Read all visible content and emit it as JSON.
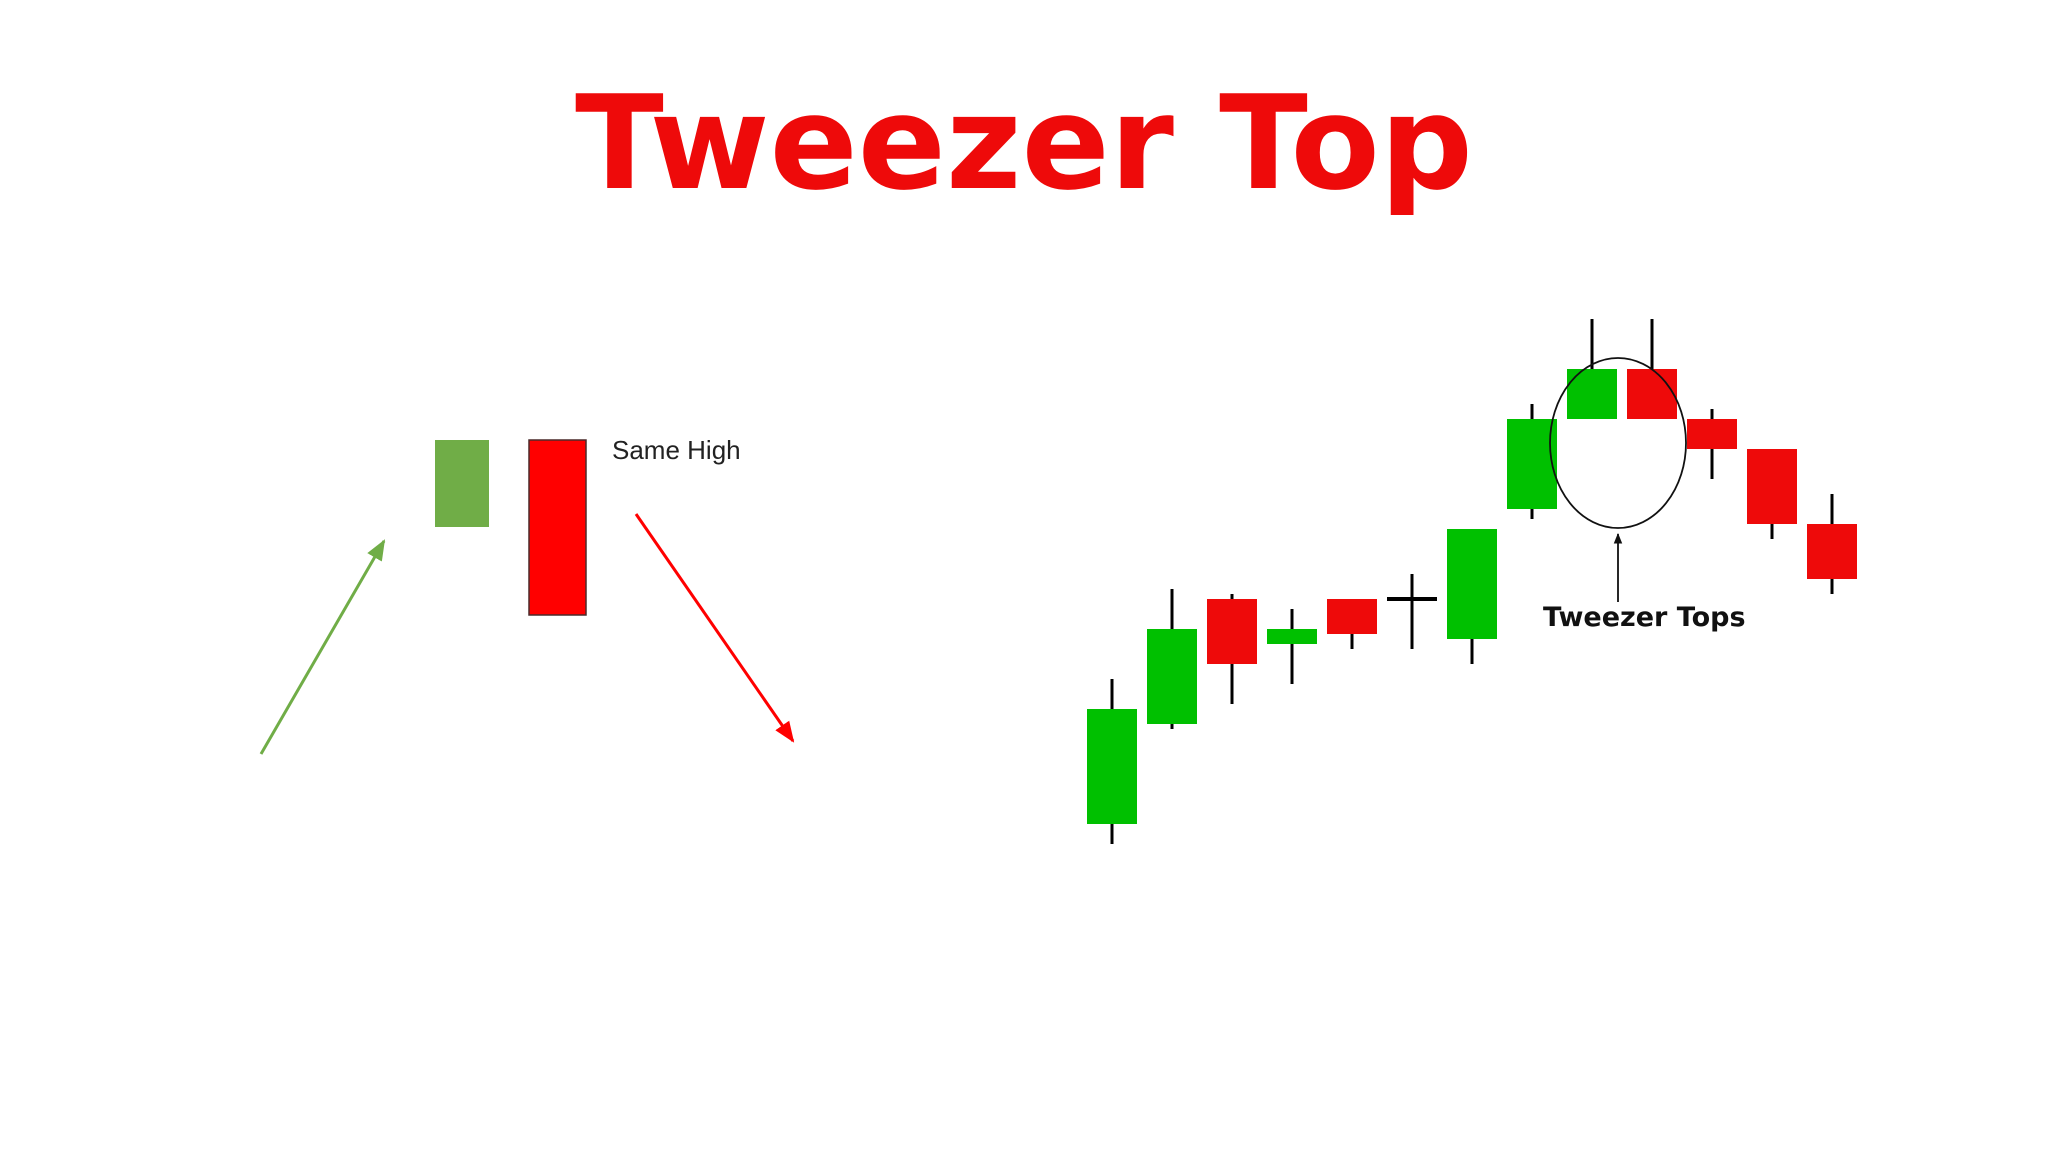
{
  "title": "Tweezer Top",
  "illustration": {
    "label": "Same High",
    "candles": [
      {
        "direction": "bullish",
        "color": "#70ad47"
      },
      {
        "direction": "bearish",
        "color": "#ff0000"
      }
    ],
    "up_arrow_color": "#70ad47",
    "down_arrow_color": "#ff0000"
  },
  "chart_data": {
    "type": "candlestick",
    "annotation": "Tweezer Tops",
    "colors": {
      "up": "#00c000",
      "down": "#ee0a0a",
      "doji": "#000000",
      "wick": "#000000"
    },
    "candles": [
      {
        "open": 20.0,
        "close": 31.5,
        "high": 34.5,
        "low": 18.0
      },
      {
        "open": 30.0,
        "close": 39.5,
        "high": 43.5,
        "low": 29.5
      },
      {
        "open": 42.5,
        "close": 36.0,
        "high": 43.0,
        "low": 32.0
      },
      {
        "open": 38.0,
        "close": 39.5,
        "high": 41.5,
        "low": 34.0
      },
      {
        "open": 42.5,
        "close": 39.0,
        "high": 42.5,
        "low": 37.5
      },
      {
        "open": 42.5,
        "close": 42.5,
        "high": 45.0,
        "low": 37.5
      },
      {
        "open": 38.5,
        "close": 49.5,
        "high": 49.5,
        "low": 36.0
      },
      {
        "open": 51.5,
        "close": 60.5,
        "high": 62.0,
        "low": 50.5
      },
      {
        "open": 60.5,
        "close": 65.5,
        "high": 70.5,
        "low": 60.5
      },
      {
        "open": 65.5,
        "close": 60.5,
        "high": 70.5,
        "low": 60.5
      },
      {
        "open": 60.5,
        "close": 57.5,
        "high": 61.5,
        "low": 54.5
      },
      {
        "open": 57.5,
        "close": 50.0,
        "high": 57.5,
        "low": 48.5
      },
      {
        "open": 50.0,
        "close": 44.5,
        "high": 53.0,
        "low": 43.0
      }
    ],
    "highlight": [
      8,
      9
    ]
  }
}
